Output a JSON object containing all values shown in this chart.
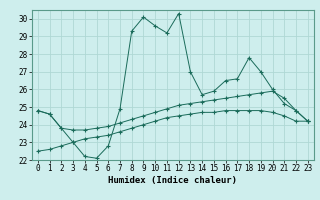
{
  "xlabel": "Humidex (Indice chaleur)",
  "bg_color": "#ceeeed",
  "grid_color": "#afd8d5",
  "line_color": "#1a6b5a",
  "spine_color": "#5a9a8a",
  "xlim": [
    -0.5,
    23.5
  ],
  "ylim": [
    22,
    30.5
  ],
  "xticks": [
    0,
    1,
    2,
    3,
    4,
    5,
    6,
    7,
    8,
    9,
    10,
    11,
    12,
    13,
    14,
    15,
    16,
    17,
    18,
    19,
    20,
    21,
    22,
    23
  ],
  "yticks": [
    22,
    23,
    24,
    25,
    26,
    27,
    28,
    29,
    30
  ],
  "series": [
    [
      24.8,
      24.6,
      23.8,
      23.0,
      22.2,
      22.1,
      22.8,
      24.9,
      29.3,
      30.1,
      29.6,
      29.2,
      30.3,
      27.0,
      25.7,
      25.9,
      26.5,
      26.6,
      27.8,
      27.0,
      26.0,
      25.2,
      24.8,
      24.2
    ],
    [
      24.8,
      24.6,
      23.8,
      23.7,
      23.7,
      23.8,
      23.9,
      24.1,
      24.3,
      24.5,
      24.7,
      24.9,
      25.1,
      25.2,
      25.3,
      25.4,
      25.5,
      25.6,
      25.7,
      25.8,
      25.9,
      25.5,
      24.8,
      24.2
    ],
    [
      22.5,
      22.6,
      22.8,
      23.0,
      23.2,
      23.3,
      23.4,
      23.6,
      23.8,
      24.0,
      24.2,
      24.4,
      24.5,
      24.6,
      24.7,
      24.7,
      24.8,
      24.8,
      24.8,
      24.8,
      24.7,
      24.5,
      24.2,
      24.2
    ]
  ],
  "xlabel_fontsize": 6.5,
  "tick_fontsize": 5.5
}
